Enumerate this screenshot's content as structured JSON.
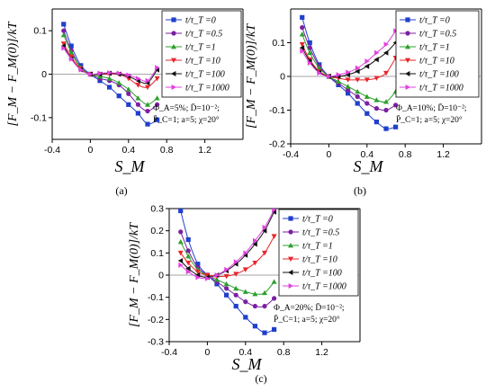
{
  "chart_data": [
    {
      "type": "line",
      "caption": "(a)",
      "xlabel": "S_M",
      "ylabel": "[F_M − F_M(0)]/kT",
      "xlim": [
        -0.4,
        1.6
      ],
      "ylim": [
        -0.15,
        0.15
      ],
      "xticks": [
        "-0.4",
        "0",
        "0.4",
        "0.8",
        "1.2"
      ],
      "yticks": [
        "-0.1",
        "0",
        "0.1"
      ],
      "annotation": [
        "Φ_A=5%; D̄=10⁻²;",
        "P̄_C=1; a=5; χ=20°"
      ],
      "legend_position": "top-right",
      "series": [
        {
          "name": "t/τ_T =0",
          "color": "#1f3fcc",
          "marker": "square",
          "x": [
            -0.28,
            -0.2,
            -0.1,
            0,
            0.1,
            0.2,
            0.3,
            0.4,
            0.5,
            0.6,
            0.7
          ],
          "y": [
            0.115,
            0.065,
            0.02,
            0,
            -0.015,
            -0.03,
            -0.05,
            -0.07,
            -0.09,
            -0.115,
            -0.105
          ]
        },
        {
          "name": "t/τ_T =0.5",
          "color": "#7b1fa2",
          "marker": "circle",
          "x": [
            -0.28,
            -0.2,
            -0.1,
            0,
            0.1,
            0.2,
            0.3,
            0.4,
            0.5,
            0.6,
            0.7
          ],
          "y": [
            0.1,
            0.055,
            0.015,
            0,
            -0.01,
            -0.015,
            -0.025,
            -0.045,
            -0.07,
            -0.085,
            -0.07
          ]
        },
        {
          "name": "t/τ_T =1",
          "color": "#2ca02c",
          "marker": "triangle-up",
          "x": [
            -0.28,
            -0.2,
            -0.1,
            0,
            0.1,
            0.2,
            0.3,
            0.4,
            0.5,
            0.6,
            0.7
          ],
          "y": [
            0.09,
            0.05,
            0.015,
            0,
            -0.005,
            -0.01,
            -0.02,
            -0.035,
            -0.055,
            -0.07,
            -0.055
          ]
        },
        {
          "name": "t/τ_T =10",
          "color": "#e8252b",
          "marker": "triangle-down",
          "x": [
            -0.28,
            -0.2,
            -0.1,
            0,
            0.1,
            0.2,
            0.3,
            0.4,
            0.5,
            0.6,
            0.7
          ],
          "y": [
            0.07,
            0.04,
            0.012,
            0,
            0,
            0,
            0,
            -0.01,
            -0.025,
            -0.03,
            -0.01
          ]
        },
        {
          "name": "t/τ_T =100",
          "color": "#111111",
          "marker": "triangle-left",
          "x": [
            -0.28,
            -0.2,
            -0.1,
            0,
            0.1,
            0.2,
            0.3,
            0.4,
            0.5,
            0.6,
            0.7
          ],
          "y": [
            0.065,
            0.035,
            0.01,
            0,
            0,
            0.002,
            0,
            -0.005,
            -0.015,
            -0.02,
            0.01
          ]
        },
        {
          "name": "t/τ_T =1000",
          "color": "#e040e0",
          "marker": "triangle-right",
          "x": [
            -0.28,
            -0.2,
            -0.1,
            0,
            0.1,
            0.2,
            0.3,
            0.4,
            0.5,
            0.6,
            0.7
          ],
          "y": [
            0.06,
            0.035,
            0.01,
            0,
            0.002,
            0.003,
            0.002,
            -0.002,
            -0.01,
            -0.015,
            0.015
          ]
        }
      ]
    },
    {
      "type": "line",
      "caption": "(b)",
      "xlabel": "S_M",
      "ylabel": "[F_M − F_M(0)]/kT",
      "xlim": [
        -0.4,
        1.6
      ],
      "ylim": [
        -0.2,
        0.2
      ],
      "xticks": [
        "-0.4",
        "0",
        "0.4",
        "0.8",
        "1.2"
      ],
      "yticks": [
        "-0.2",
        "-0.1",
        "0",
        "0.1"
      ],
      "annotation": [
        "Φ_A=10%; D̄=10⁻²;",
        "P̄_C=1; a=5; χ=20°"
      ],
      "legend_position": "top-right",
      "series": [
        {
          "name": "t/τ_T =0",
          "color": "#1f3fcc",
          "marker": "square",
          "x": [
            -0.28,
            -0.2,
            -0.1,
            0,
            0.1,
            0.2,
            0.3,
            0.4,
            0.5,
            0.6,
            0.7
          ],
          "y": [
            0.175,
            0.1,
            0.035,
            0,
            -0.025,
            -0.05,
            -0.08,
            -0.11,
            -0.135,
            -0.155,
            -0.15
          ]
        },
        {
          "name": "t/τ_T =0.5",
          "color": "#7b1fa2",
          "marker": "circle",
          "x": [
            -0.28,
            -0.2,
            -0.1,
            0,
            0.1,
            0.2,
            0.3,
            0.4,
            0.5,
            0.6,
            0.7
          ],
          "y": [
            0.145,
            0.085,
            0.03,
            0,
            -0.02,
            -0.04,
            -0.06,
            -0.08,
            -0.095,
            -0.1,
            -0.085
          ]
        },
        {
          "name": "t/τ_T =1",
          "color": "#2ca02c",
          "marker": "triangle-up",
          "x": [
            -0.28,
            -0.2,
            -0.1,
            0,
            0.1,
            0.2,
            0.3,
            0.4,
            0.5,
            0.6,
            0.7
          ],
          "y": [
            0.125,
            0.07,
            0.025,
            0,
            -0.015,
            -0.03,
            -0.045,
            -0.06,
            -0.07,
            -0.075,
            -0.045
          ]
        },
        {
          "name": "t/τ_T =10",
          "color": "#e8252b",
          "marker": "triangle-down",
          "x": [
            -0.28,
            -0.2,
            -0.1,
            0,
            0.1,
            0.2,
            0.3,
            0.4,
            0.5,
            0.6,
            0.7
          ],
          "y": [
            0.095,
            0.05,
            0.015,
            0,
            -0.005,
            -0.01,
            -0.01,
            -0.01,
            -0.005,
            0.01,
            0.055
          ]
        },
        {
          "name": "t/τ_T =100",
          "color": "#111111",
          "marker": "triangle-left",
          "x": [
            -0.28,
            -0.2,
            -0.1,
            0,
            0.1,
            0.2,
            0.3,
            0.4,
            0.5,
            0.6,
            0.7
          ],
          "y": [
            0.085,
            0.045,
            0.012,
            0,
            0,
            0.005,
            0.015,
            0.03,
            0.05,
            0.07,
            0.1
          ]
        },
        {
          "name": "t/τ_T =1000",
          "color": "#e040e0",
          "marker": "triangle-right",
          "x": [
            -0.28,
            -0.2,
            -0.1,
            0,
            0.1,
            0.2,
            0.3,
            0.4,
            0.5,
            0.6,
            0.7
          ],
          "y": [
            0.075,
            0.04,
            0.01,
            0,
            0.005,
            0.012,
            0.025,
            0.045,
            0.07,
            0.095,
            0.135
          ]
        }
      ]
    },
    {
      "type": "line",
      "caption": "(c)",
      "xlabel": "S_M",
      "ylabel": "[F_M − F_M(0)]/kT",
      "xlim": [
        -0.4,
        1.6
      ],
      "ylim": [
        -0.3,
        0.3
      ],
      "xticks": [
        "-0.4",
        "0",
        "0.4",
        "0.8",
        "1.2"
      ],
      "yticks": [
        "-0.3",
        "-0.2",
        "-0.1",
        "0",
        "0.1",
        "0.2",
        "0.3"
      ],
      "annotation": [
        "Φ_A=20%; D̄=10⁻²;",
        "P̄_C=1; a=5; χ=20°"
      ],
      "legend_position": "top-right",
      "series": [
        {
          "name": "t/τ_T =0",
          "color": "#1f3fcc",
          "marker": "square",
          "x": [
            -0.28,
            -0.2,
            -0.1,
            0,
            0.1,
            0.2,
            0.3,
            0.4,
            0.5,
            0.6,
            0.7
          ],
          "y": [
            0.29,
            0.16,
            0.05,
            0,
            -0.04,
            -0.09,
            -0.14,
            -0.19,
            -0.23,
            -0.26,
            -0.245
          ]
        },
        {
          "name": "t/τ_T =0.5",
          "color": "#7b1fa2",
          "marker": "circle",
          "x": [
            -0.28,
            -0.2,
            -0.1,
            0,
            0.1,
            0.2,
            0.3,
            0.4,
            0.5,
            0.6,
            0.7
          ],
          "y": [
            0.195,
            0.11,
            0.035,
            0,
            -0.03,
            -0.06,
            -0.09,
            -0.12,
            -0.14,
            -0.14,
            -0.105
          ]
        },
        {
          "name": "t/τ_T =1",
          "color": "#2ca02c",
          "marker": "triangle-up",
          "x": [
            -0.28,
            -0.2,
            -0.1,
            0,
            0.1,
            0.2,
            0.3,
            0.4,
            0.5,
            0.6,
            0.7
          ],
          "y": [
            0.15,
            0.085,
            0.025,
            0,
            -0.02,
            -0.04,
            -0.06,
            -0.075,
            -0.085,
            -0.08,
            -0.03
          ]
        },
        {
          "name": "t/τ_T =10",
          "color": "#e8252b",
          "marker": "triangle-down",
          "x": [
            -0.28,
            -0.2,
            -0.1,
            0,
            0.1,
            0.2,
            0.3,
            0.4,
            0.5,
            0.6,
            0.7
          ],
          "y": [
            0.1,
            0.055,
            0.015,
            0,
            -0.005,
            -0.005,
            0.005,
            0.025,
            0.055,
            0.1,
            0.175
          ]
        },
        {
          "name": "t/τ_T =100",
          "color": "#111111",
          "marker": "triangle-left",
          "x": [
            -0.28,
            -0.2,
            -0.1,
            0,
            0.1,
            0.2,
            0.3,
            0.4,
            0.5,
            0.6,
            0.7
          ],
          "y": [
            0.065,
            0.03,
            0,
            -0.01,
            0,
            0.02,
            0.05,
            0.09,
            0.14,
            0.2,
            0.285
          ]
        },
        {
          "name": "t/τ_T =1000",
          "color": "#e040e0",
          "marker": "triangle-right",
          "x": [
            -0.28,
            -0.2,
            -0.1,
            0,
            0.1,
            0.2,
            0.3,
            0.4,
            0.5,
            0.6,
            0.7
          ],
          "y": [
            0.045,
            0.015,
            -0.01,
            -0.015,
            0,
            0.025,
            0.06,
            0.1,
            0.155,
            0.215,
            0.295
          ]
        }
      ]
    }
  ]
}
